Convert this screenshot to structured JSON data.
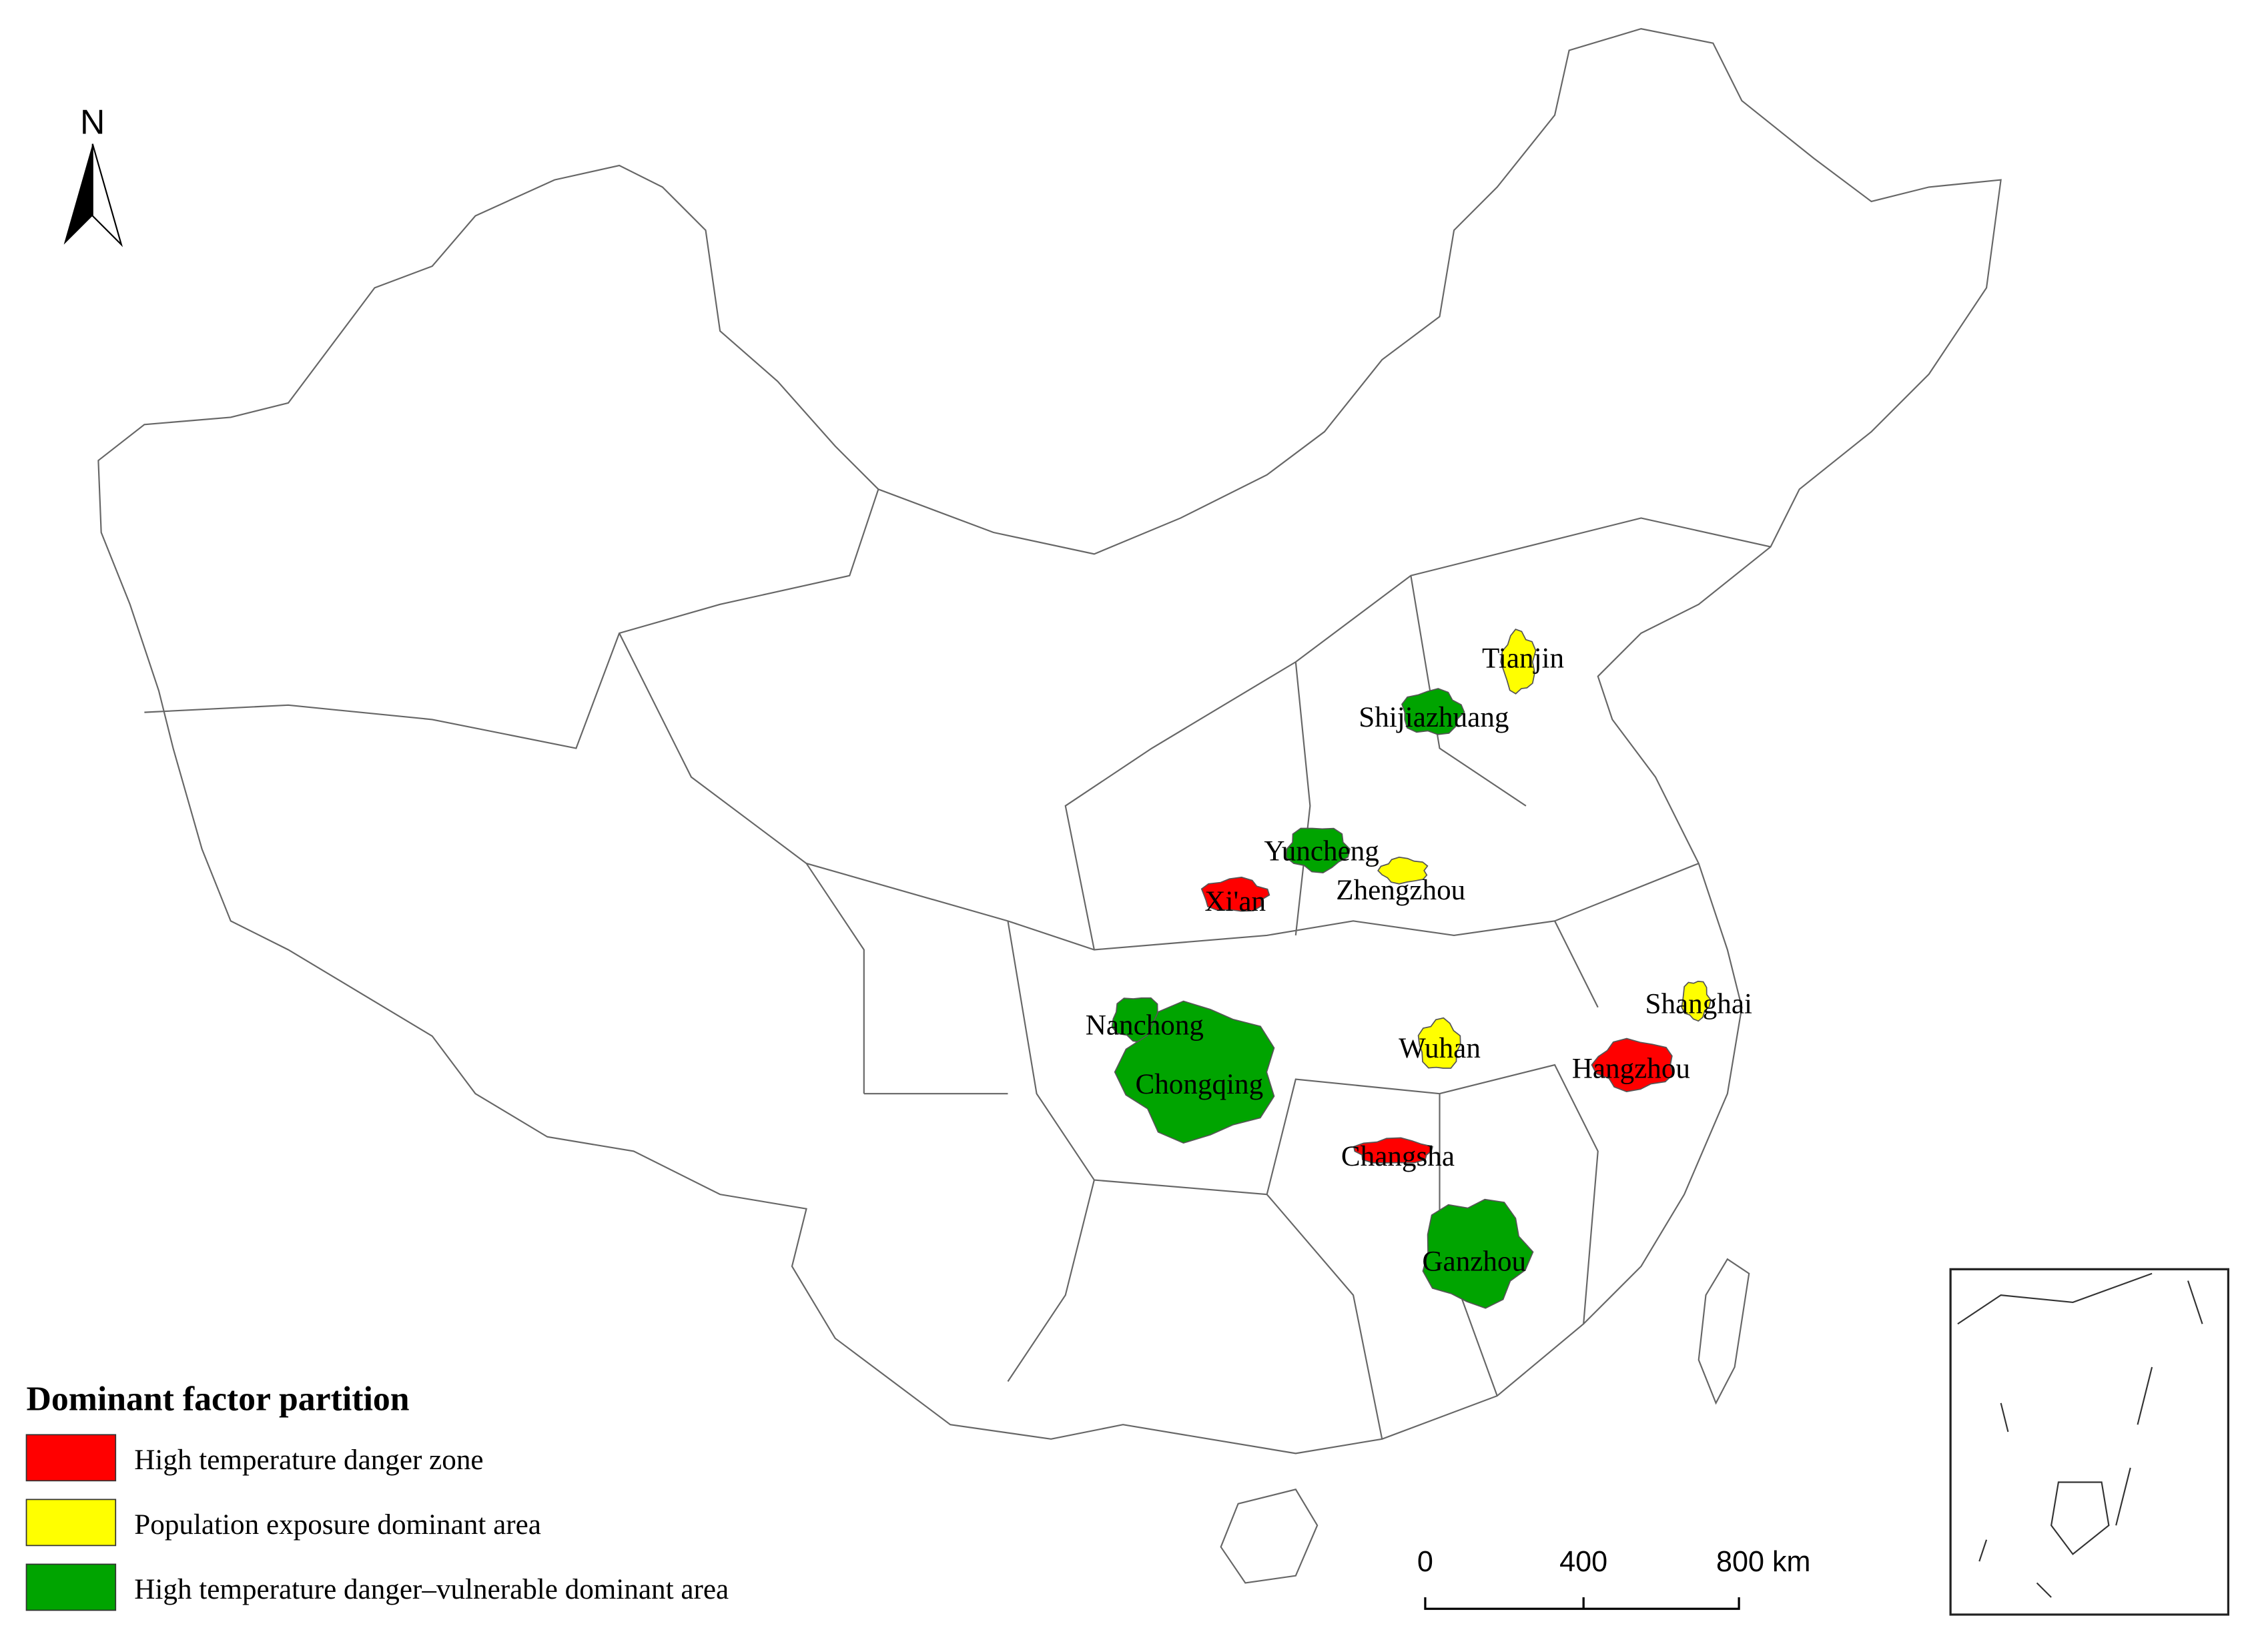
{
  "north_arrow": {
    "label": "N"
  },
  "cities": [
    {
      "name": "Tianjin",
      "category": 1
    },
    {
      "name": "Shijiazhuang",
      "category": 2
    },
    {
      "name": "Yuncheng",
      "category": 2
    },
    {
      "name": "Zhengzhou",
      "category": 1
    },
    {
      "name": "Xi'an",
      "category": 0
    },
    {
      "name": "Nanchong",
      "category": 2
    },
    {
      "name": "Chongqing",
      "category": 2
    },
    {
      "name": "Wuhan",
      "category": 1
    },
    {
      "name": "Shanghai",
      "category": 1
    },
    {
      "name": "Hangzhou",
      "category": 0
    },
    {
      "name": "Changsha",
      "category": 0
    },
    {
      "name": "Ganzhou",
      "category": 2
    }
  ],
  "legend": {
    "title": "Dominant factor partition",
    "items": [
      {
        "label": "High temperature danger zone",
        "color": "#ff0000"
      },
      {
        "label": "Population exposure dominant area",
        "color": "#ffff00"
      },
      {
        "label": "High temperature danger–vulnerable dominant area",
        "color": "#00a400"
      }
    ]
  },
  "scale_bar": {
    "labels": [
      "0",
      "400",
      "800 km"
    ]
  }
}
